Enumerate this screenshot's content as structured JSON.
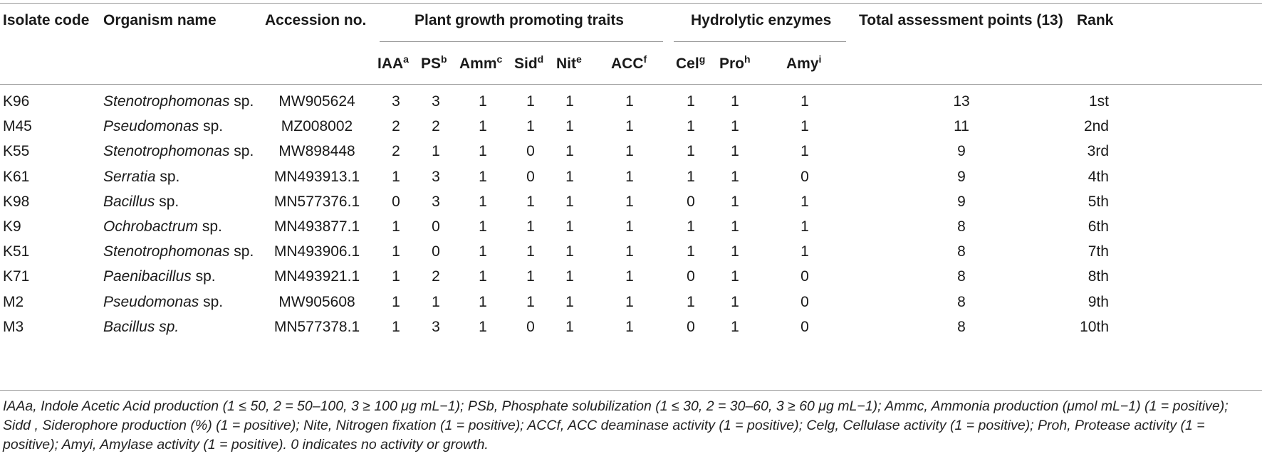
{
  "headers": {
    "isolate_code": "Isolate code",
    "organism_name": "Organism name",
    "accession_no": "Accession no.",
    "pgp_group": "Plant growth promoting traits",
    "hydro_group": "Hydrolytic enzymes",
    "total": "Total assessment points (13)",
    "rank": "Rank"
  },
  "subheaders": [
    {
      "label": "IAA",
      "sup": "a"
    },
    {
      "label": "PS",
      "sup": "b"
    },
    {
      "label": "Amm",
      "sup": "c"
    },
    {
      "label": "Sid",
      "sup": "d"
    },
    {
      "label": "Nit",
      "sup": "e"
    },
    {
      "label": "ACC",
      "sup": "f"
    },
    {
      "label": "Cel",
      "sup": "g"
    },
    {
      "label": "Pro",
      "sup": "h"
    },
    {
      "label": "Amy",
      "sup": "i"
    }
  ],
  "rows": [
    {
      "code": "K96",
      "genus": "Stenotrophomonas",
      "suffix": " sp.",
      "acc": "MW905624",
      "v": [
        "3",
        "3",
        "1",
        "1",
        "1",
        "1",
        "1",
        "1",
        "1"
      ],
      "total": "13",
      "rank": "1st"
    },
    {
      "code": "M45",
      "genus": "Pseudomonas",
      "suffix": " sp.",
      "acc": "MZ008002",
      "v": [
        "2",
        "2",
        "1",
        "1",
        "1",
        "1",
        "1",
        "1",
        "1"
      ],
      "total": "11",
      "rank": "2nd"
    },
    {
      "code": "K55",
      "genus": "Stenotrophomonas",
      "suffix": " sp.",
      "acc": "MW898448",
      "v": [
        "2",
        "1",
        "1",
        "0",
        "1",
        "1",
        "1",
        "1",
        "1"
      ],
      "total": "9",
      "rank": "3rd"
    },
    {
      "code": "K61",
      "genus": "Serratia",
      "suffix": " sp.",
      "acc": "MN493913.1",
      "v": [
        "1",
        "3",
        "1",
        "0",
        "1",
        "1",
        "1",
        "1",
        "0"
      ],
      "total": "9",
      "rank": "4th"
    },
    {
      "code": "K98",
      "genus": "Bacillus",
      "suffix": " sp.",
      "acc": "MN577376.1",
      "v": [
        "0",
        "3",
        "1",
        "1",
        "1",
        "1",
        "0",
        "1",
        "1"
      ],
      "total": "9",
      "rank": "5th"
    },
    {
      "code": "K9",
      "genus": "Ochrobactrum",
      "suffix": " sp.",
      "acc": "MN493877.1",
      "v": [
        "1",
        "0",
        "1",
        "1",
        "1",
        "1",
        "1",
        "1",
        "1"
      ],
      "total": "8",
      "rank": "6th"
    },
    {
      "code": "K51",
      "genus": "Stenotrophomonas",
      "suffix": " sp.",
      "acc": "MN493906.1",
      "v": [
        "1",
        "0",
        "1",
        "1",
        "1",
        "1",
        "1",
        "1",
        "1"
      ],
      "total": "8",
      "rank": "7th"
    },
    {
      "code": "K71",
      "genus": "Paenibacillus",
      "suffix": " sp.",
      "acc": "MN493921.1",
      "v": [
        "1",
        "2",
        "1",
        "1",
        "1",
        "1",
        "0",
        "1",
        "0"
      ],
      "total": "8",
      "rank": "8th"
    },
    {
      "code": "M2",
      "genus": "Pseudomonas",
      "suffix": " sp.",
      "acc": "MW905608",
      "v": [
        "1",
        "1",
        "1",
        "1",
        "1",
        "1",
        "1",
        "1",
        "0"
      ],
      "total": "8",
      "rank": "9th"
    },
    {
      "code": "M3",
      "genus": "Bacillus sp.",
      "suffix": "",
      "acc": "MN577378.1",
      "v": [
        "1",
        "3",
        "1",
        "0",
        "1",
        "1",
        "0",
        "1",
        "0"
      ],
      "total": "8",
      "rank": "10th"
    }
  ],
  "footnote": "IAAa, Indole Acetic Acid production (1 ≤ 50, 2 = 50–100, 3 ≥ 100 μg mL−1); PSb, Phosphate solubilization (1 ≤ 30, 2 = 30–60, 3 ≥ 60 μg mL−1); Ammc, Ammonia production (μmol mL−1) (1 = positive); Sidd , Siderophore production (%) (1 = positive); Nite, Nitrogen fixation (1 = positive); ACCf, ACC deaminase activity (1 = positive); Celg, Cellulase activity (1 = positive); Proh, Protease activity (1 = positive); Amyi, Amylase activity (1 = positive). 0 indicates no activity or growth."
}
